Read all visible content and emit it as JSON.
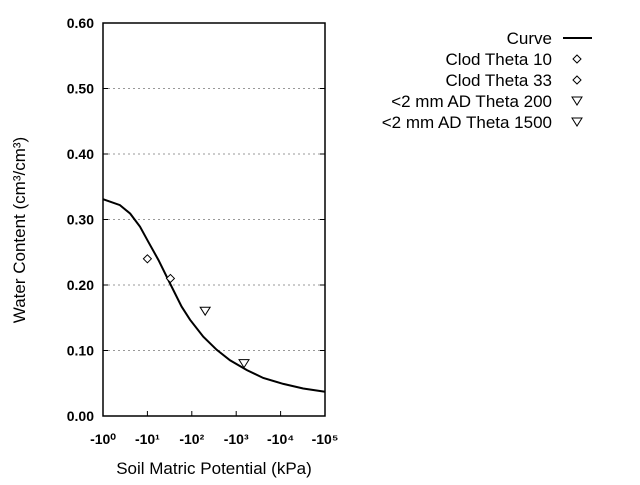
{
  "chart_data": {
    "type": "line",
    "title": "",
    "xlabel": "Soil Matric Potential (kPa)",
    "ylabel": "Water Content (cm³/cm³)",
    "x_scale": "log (negative values)",
    "xlim": [
      -1,
      -100000
    ],
    "ylim": [
      0,
      0.6
    ],
    "x_ticks": [
      -1,
      -10,
      -100,
      -1000,
      -10000,
      -100000
    ],
    "x_tick_labels": [
      "-10⁰",
      "-10¹",
      "-10²",
      "-10³",
      "-10⁴",
      "-10⁵"
    ],
    "y_ticks": [
      0,
      0.1,
      0.2,
      0.3,
      0.4,
      0.5,
      0.6
    ],
    "y_tick_labels": [
      "0.00",
      "0.10",
      "0.20",
      "0.30",
      "0.40",
      "0.50",
      "0.60"
    ],
    "grid": "horizontal dotted",
    "legend_position": "top-right, outside plot",
    "series": [
      {
        "name": "Curve",
        "kind": "line",
        "color": "#000000",
        "x": [
          -1,
          -2.4,
          -4.1,
          -6.8,
          -10.5,
          -17.8,
          -32,
          -59,
          -91,
          -182,
          -363,
          -724,
          -1738,
          -4074,
          -11482,
          -32359,
          -100000
        ],
        "y": [
          0.331,
          0.322,
          0.309,
          0.289,
          0.266,
          0.238,
          0.203,
          0.167,
          0.147,
          0.121,
          0.101,
          0.085,
          0.07,
          0.058,
          0.049,
          0.042,
          0.037
        ]
      },
      {
        "name": "Clod Theta 10",
        "kind": "marker",
        "marker": "diamond",
        "x": [
          -10
        ],
        "y": [
          0.24
        ]
      },
      {
        "name": "Clod Theta 33",
        "kind": "marker",
        "marker": "diamond",
        "x": [
          -33
        ],
        "y": [
          0.21
        ]
      },
      {
        "name": "<2 mm AD Theta 200",
        "kind": "marker",
        "marker": "triangle-down",
        "x": [
          -200
        ],
        "y": [
          0.16
        ]
      },
      {
        "name": "<2 mm AD Theta 1500",
        "kind": "marker",
        "marker": "triangle-down",
        "x": [
          -1500
        ],
        "y": [
          0.08
        ]
      }
    ]
  }
}
